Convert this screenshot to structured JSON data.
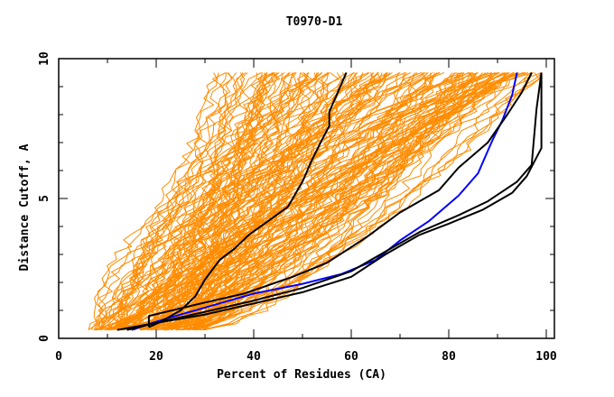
{
  "chart_data": {
    "type": "line",
    "title": "T0970-D1",
    "xlabel": "Percent of Residues (CA)",
    "ylabel": "Distance Cutoff, A",
    "xlim": [
      0,
      100
    ],
    "ylim": [
      0,
      10
    ],
    "x_ticks": [
      0,
      20,
      40,
      60,
      80,
      100
    ],
    "y_ticks": [
      0,
      5,
      10
    ],
    "x_minor_step": 10,
    "y_minor_step": 1,
    "grid": false,
    "legend": "none",
    "colors": {
      "background_models": "#ff8c00",
      "highlight": "#0000ff",
      "reference": "#000000",
      "axes": "#000000"
    },
    "highlight_series": [
      {
        "name": "blue-model",
        "color": "#0000ff",
        "points": [
          [
            15,
            0.3
          ],
          [
            20,
            0.6
          ],
          [
            25,
            0.85
          ],
          [
            30,
            1.1
          ],
          [
            40,
            1.6
          ],
          [
            50,
            1.95
          ],
          [
            58,
            2.3
          ],
          [
            65,
            2.8
          ],
          [
            70,
            3.5
          ],
          [
            76,
            4.2
          ],
          [
            82,
            5.1
          ],
          [
            86,
            5.9
          ],
          [
            89,
            7.1
          ],
          [
            91,
            7.8
          ],
          [
            93,
            8.7
          ],
          [
            94,
            9.5
          ]
        ]
      },
      {
        "name": "black-model-1",
        "color": "#000000",
        "points": [
          [
            18.5,
            0.4
          ],
          [
            18.5,
            0.8
          ],
          [
            28,
            1.2
          ],
          [
            38,
            1.6
          ],
          [
            48,
            2.2
          ],
          [
            55,
            2.7
          ],
          [
            63,
            3.6
          ],
          [
            70,
            4.5
          ],
          [
            78,
            5.3
          ],
          [
            82,
            6.1
          ],
          [
            88,
            7.0
          ],
          [
            92,
            8.0
          ],
          [
            95,
            8.8
          ],
          [
            97,
            9.5
          ]
        ]
      },
      {
        "name": "black-model-2",
        "color": "#000000",
        "points": [
          [
            12,
            0.3
          ],
          [
            20,
            0.55
          ],
          [
            30,
            0.95
          ],
          [
            40,
            1.35
          ],
          [
            50,
            1.8
          ],
          [
            60,
            2.4
          ],
          [
            67,
            3.1
          ],
          [
            74,
            3.8
          ],
          [
            82,
            4.4
          ],
          [
            88,
            4.9
          ],
          [
            94,
            5.6
          ],
          [
            97,
            6.2
          ],
          [
            98,
            8.2
          ],
          [
            99,
            9.5
          ]
        ]
      },
      {
        "name": "black-model-3",
        "color": "#000000",
        "points": [
          [
            14,
            0.3
          ],
          [
            20,
            0.55
          ],
          [
            30,
            0.85
          ],
          [
            40,
            1.25
          ],
          [
            50,
            1.65
          ],
          [
            60,
            2.2
          ],
          [
            67,
            3.0
          ],
          [
            74,
            3.7
          ],
          [
            80,
            4.1
          ],
          [
            87,
            4.6
          ],
          [
            93,
            5.2
          ],
          [
            96,
            5.8
          ],
          [
            99,
            6.8
          ],
          [
            99,
            9.5
          ]
        ]
      },
      {
        "name": "black-model-4",
        "color": "#000000",
        "points": [
          [
            18.5,
            0.4
          ],
          [
            21,
            0.6
          ],
          [
            25,
            1.0
          ],
          [
            28,
            1.5
          ],
          [
            30,
            2.1
          ],
          [
            33,
            2.8
          ],
          [
            36,
            3.2
          ],
          [
            39,
            3.7
          ],
          [
            43,
            4.2
          ],
          [
            47,
            4.7
          ],
          [
            50,
            5.6
          ],
          [
            52,
            6.4
          ],
          [
            54,
            7.1
          ],
          [
            55.5,
            7.6
          ],
          [
            55.5,
            8.1
          ],
          [
            59,
            9.5
          ]
        ]
      }
    ],
    "background_series_count": 160,
    "background_series_envelope": {
      "start_x_range": [
        6,
        30
      ],
      "end_x_range": [
        25,
        100
      ],
      "start_y": 0.3,
      "end_y": 9.5
    }
  }
}
